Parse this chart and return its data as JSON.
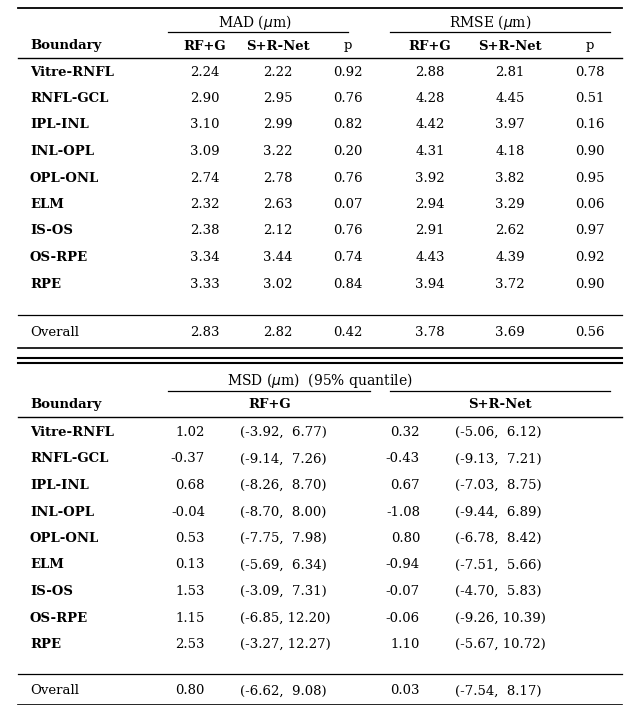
{
  "t1_rows": [
    [
      "Vitre-RNFL",
      "2.24",
      "2.22",
      "0.92",
      "2.88",
      "2.81",
      "0.78"
    ],
    [
      "RNFL-GCL",
      "2.90",
      "2.95",
      "0.76",
      "4.28",
      "4.45",
      "0.51"
    ],
    [
      "IPL-INL",
      "3.10",
      "2.99",
      "0.82",
      "4.42",
      "3.97",
      "0.16"
    ],
    [
      "INL-OPL",
      "3.09",
      "3.22",
      "0.20",
      "4.31",
      "4.18",
      "0.90"
    ],
    [
      "OPL-ONL",
      "2.74",
      "2.78",
      "0.76",
      "3.92",
      "3.82",
      "0.95"
    ],
    [
      "ELM",
      "2.32",
      "2.63",
      "0.07",
      "2.94",
      "3.29",
      "0.06"
    ],
    [
      "IS-OS",
      "2.38",
      "2.12",
      "0.76",
      "2.91",
      "2.62",
      "0.97"
    ],
    [
      "OS-RPE",
      "3.34",
      "3.44",
      "0.74",
      "4.43",
      "4.39",
      "0.92"
    ],
    [
      "RPE",
      "3.33",
      "3.02",
      "0.84",
      "3.94",
      "3.72",
      "0.90"
    ]
  ],
  "t1_overall": [
    "Overall",
    "2.83",
    "2.82",
    "0.42",
    "3.78",
    "3.69",
    "0.56"
  ],
  "t2_rows": [
    [
      "Vitre-RNFL",
      "1.02",
      "(-3.92,  6.77)",
      "0.32",
      "(-5.06,  6.12)"
    ],
    [
      "RNFL-GCL",
      "-0.37",
      "(-9.14,  7.26)",
      "-0.43",
      "(-9.13,  7.21)"
    ],
    [
      "IPL-INL",
      "0.68",
      "(-8.26,  8.70)",
      "0.67",
      "(-7.03,  8.75)"
    ],
    [
      "INL-OPL",
      "-0.04",
      "(-8.70,  8.00)",
      "-1.08",
      "(-9.44,  6.89)"
    ],
    [
      "OPL-ONL",
      "0.53",
      "(-7.75,  7.98)",
      "0.80",
      "(-6.78,  8.42)"
    ],
    [
      "ELM",
      "0.13",
      "(-5.69,  6.34)",
      "-0.94",
      "(-7.51,  5.66)"
    ],
    [
      "IS-OS",
      "1.53",
      "(-3.09,  7.31)",
      "-0.07",
      "(-4.70,  5.83)"
    ],
    [
      "OS-RPE",
      "1.15",
      "(-6.85, 12.20)",
      "-0.06",
      "(-9.26, 10.39)"
    ],
    [
      "RPE",
      "2.53",
      "(-3.27, 12.27)",
      "1.10",
      "(-5.67, 10.72)"
    ]
  ],
  "t2_overall": [
    "Overall",
    "0.80",
    "(-6.62,  9.08)",
    "0.03",
    "(-7.54,  8.17)"
  ]
}
